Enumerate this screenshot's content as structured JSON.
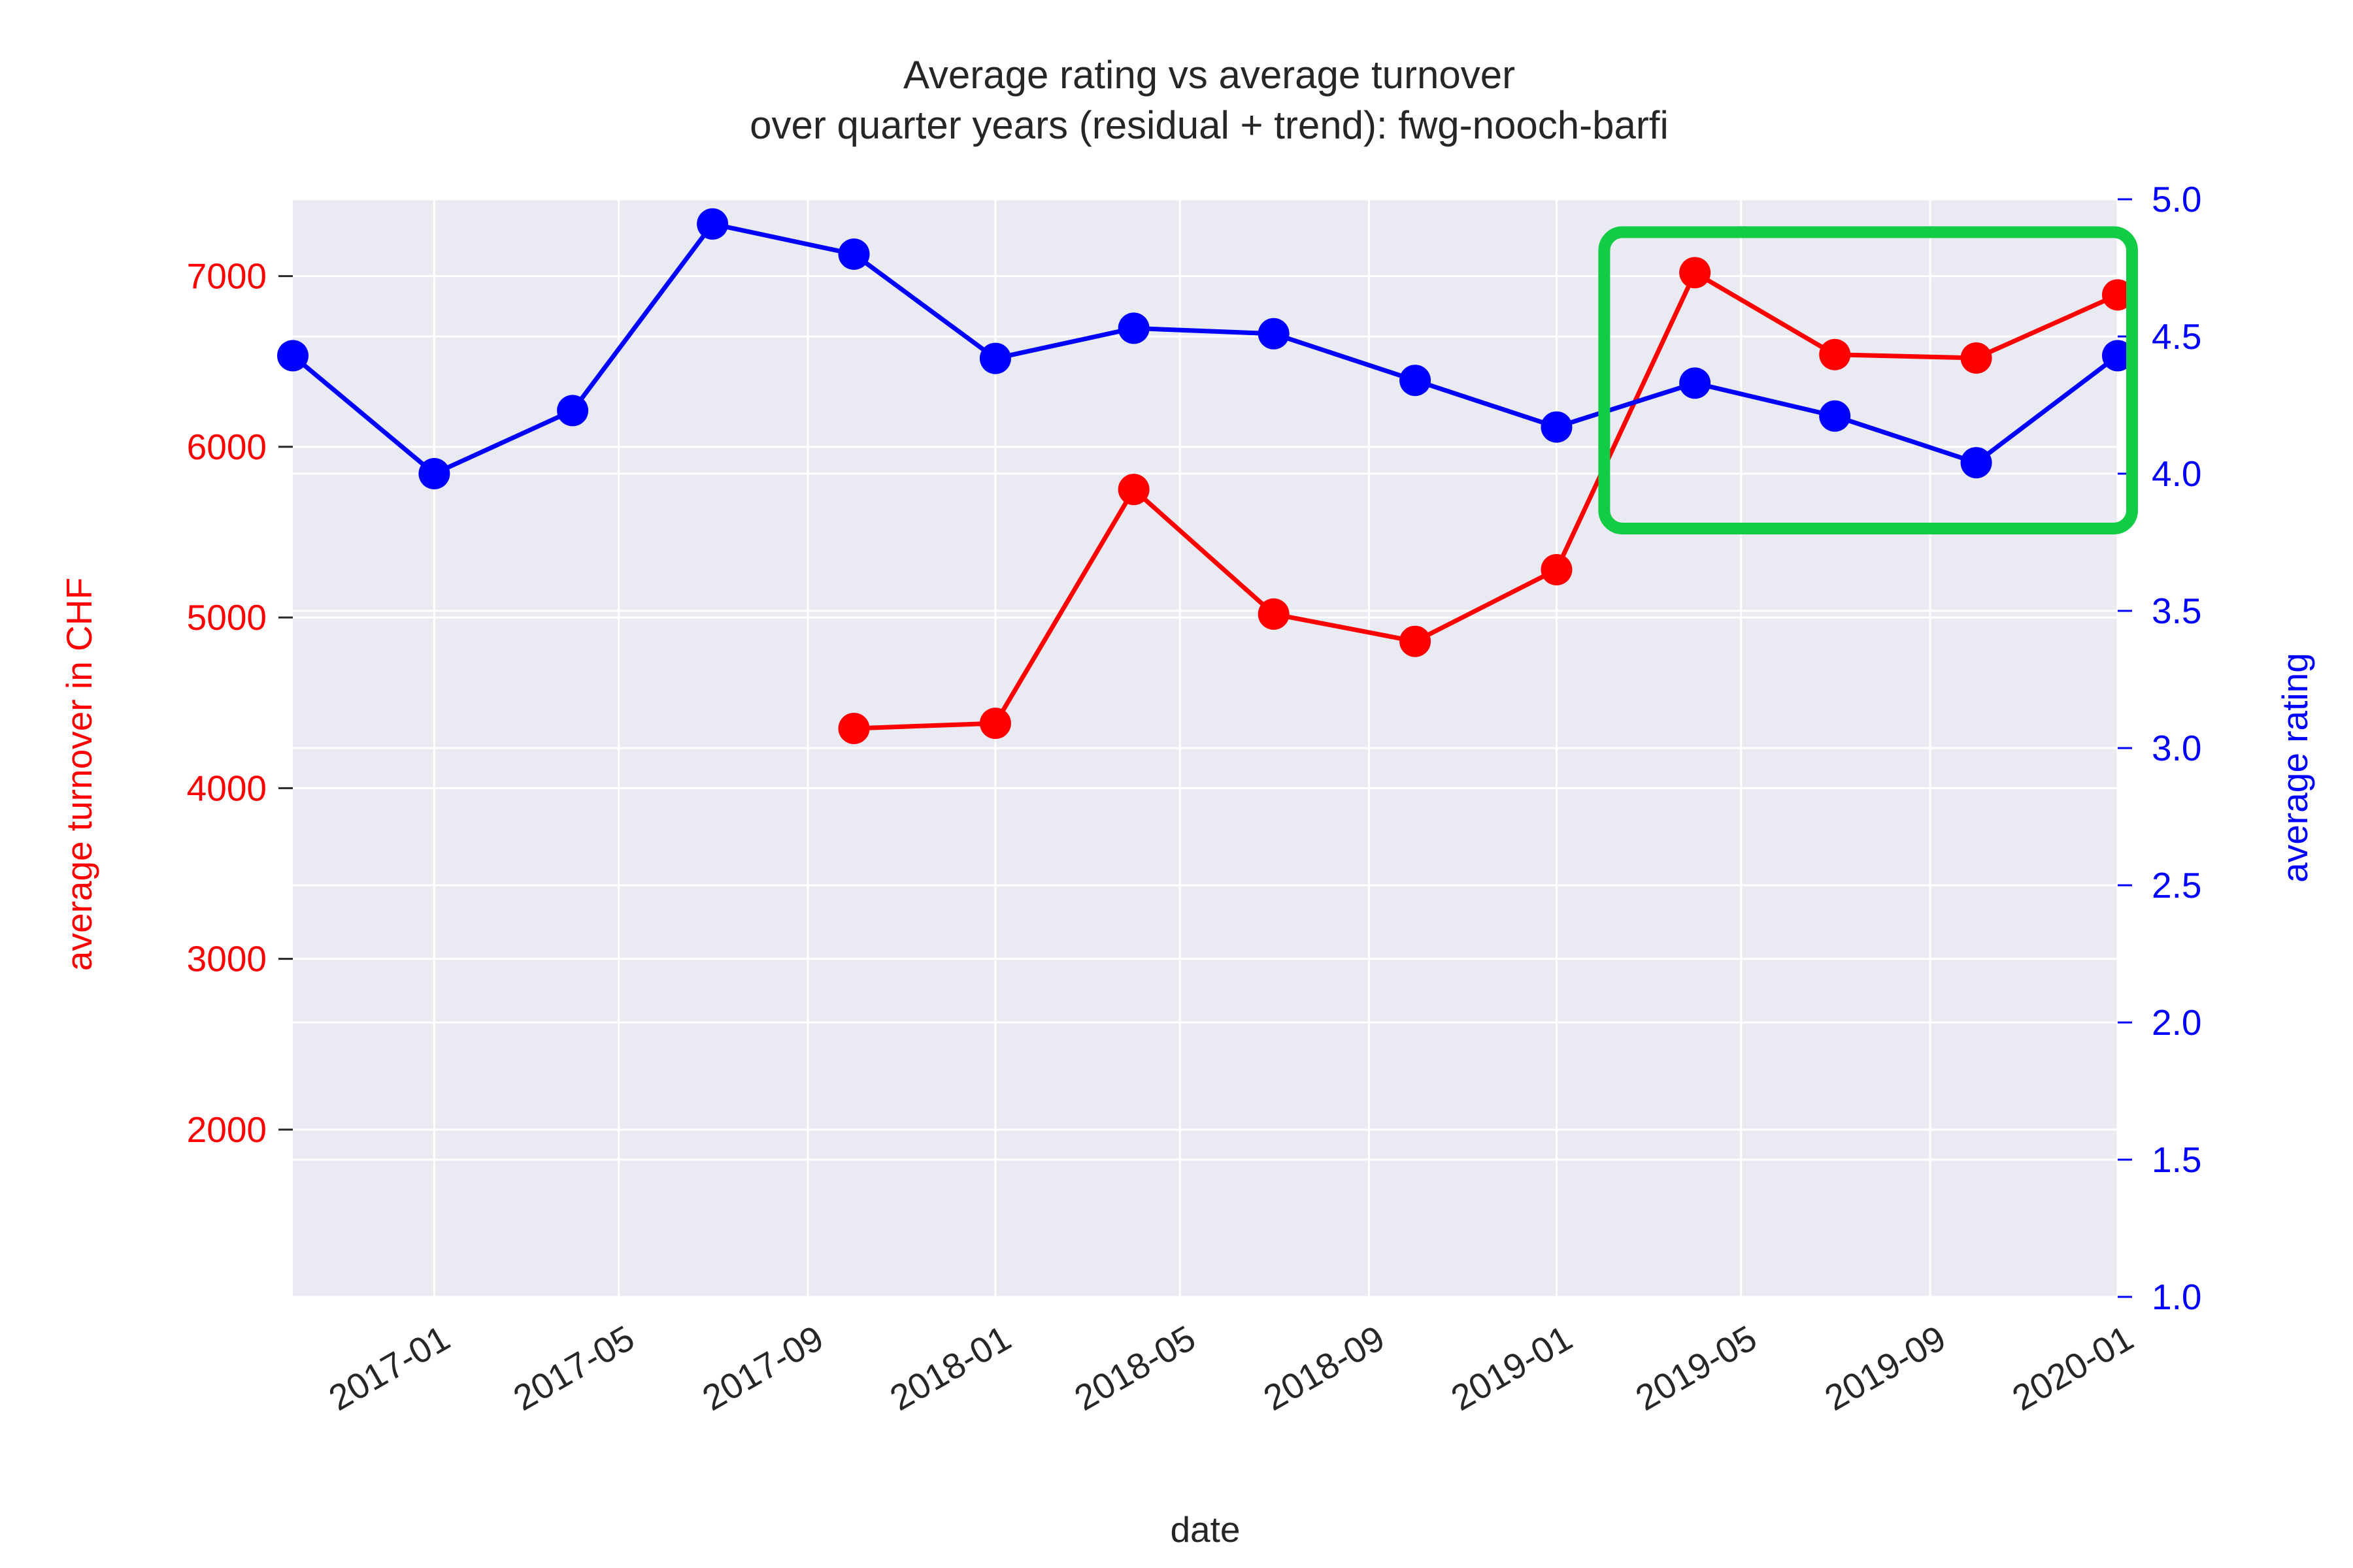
{
  "chart_data": {
    "type": "line",
    "title": [
      "Average rating vs average turnover",
      "over quarter years (residual + trend): fwg-nooch-barfi"
    ],
    "xlabel": "date",
    "y_left_label": "average turnover in CHF",
    "y_right_label": "average rating",
    "x_tick_labels": [
      "2017-01",
      "2017-05",
      "2017-09",
      "2018-01",
      "2018-05",
      "2018-09",
      "2019-01",
      "2019-05",
      "2019-09",
      "2020-01"
    ],
    "x_tick_dates": [
      "2017-01-01",
      "2017-05-01",
      "2017-09-01",
      "2018-01-01",
      "2018-05-01",
      "2018-09-01",
      "2019-01-01",
      "2019-05-01",
      "2019-09-01",
      "2020-01-01"
    ],
    "xlim": [
      "2016-10-01",
      "2020-01-01"
    ],
    "y_left_ticks": [
      2000,
      3000,
      4000,
      5000,
      6000,
      7000
    ],
    "y_left_lim": [
      1020,
      7450
    ],
    "y_right_ticks": [
      "1.0",
      "1.5",
      "2.0",
      "2.5",
      "3.0",
      "3.5",
      "4.0",
      "4.5",
      "5.0"
    ],
    "y_right_lim": [
      1.0,
      5.0
    ],
    "grid": true,
    "series": [
      {
        "name": "average turnover in CHF",
        "axis": "left",
        "color": "#ff0000",
        "x": [
          "2017-10-01",
          "2018-01-01",
          "2018-04-01",
          "2018-07-01",
          "2018-10-01",
          "2019-01-01",
          "2019-04-01",
          "2019-07-01",
          "2019-10-01",
          "2020-01-01"
        ],
        "values": [
          4350,
          4380,
          5750,
          5020,
          4860,
          5280,
          7020,
          6540,
          6520,
          6890
        ]
      },
      {
        "name": "average rating",
        "axis": "right",
        "color": "#0000ff",
        "x": [
          "2016-10-01",
          "2017-01-01",
          "2017-04-01",
          "2017-07-01",
          "2017-10-01",
          "2018-01-01",
          "2018-04-01",
          "2018-07-01",
          "2018-10-01",
          "2019-01-01",
          "2019-04-01",
          "2019-07-01",
          "2019-10-01",
          "2020-01-01"
        ],
        "values": [
          4.43,
          4.0,
          4.23,
          4.91,
          4.8,
          4.42,
          4.53,
          4.51,
          4.34,
          4.17,
          4.33,
          4.21,
          4.04,
          4.43
        ]
      }
    ],
    "highlight_box": {
      "x_range": [
        "2019-02-01",
        "2020-01-01"
      ],
      "y_right_range": [
        3.8,
        4.88
      ],
      "color": "#11cc44"
    },
    "colors": {
      "plot_bg": "#eaeaf2",
      "grid": "#ffffff",
      "left_axis": "#ff0000",
      "right_axis": "#0000ff",
      "text": "#262626"
    }
  }
}
